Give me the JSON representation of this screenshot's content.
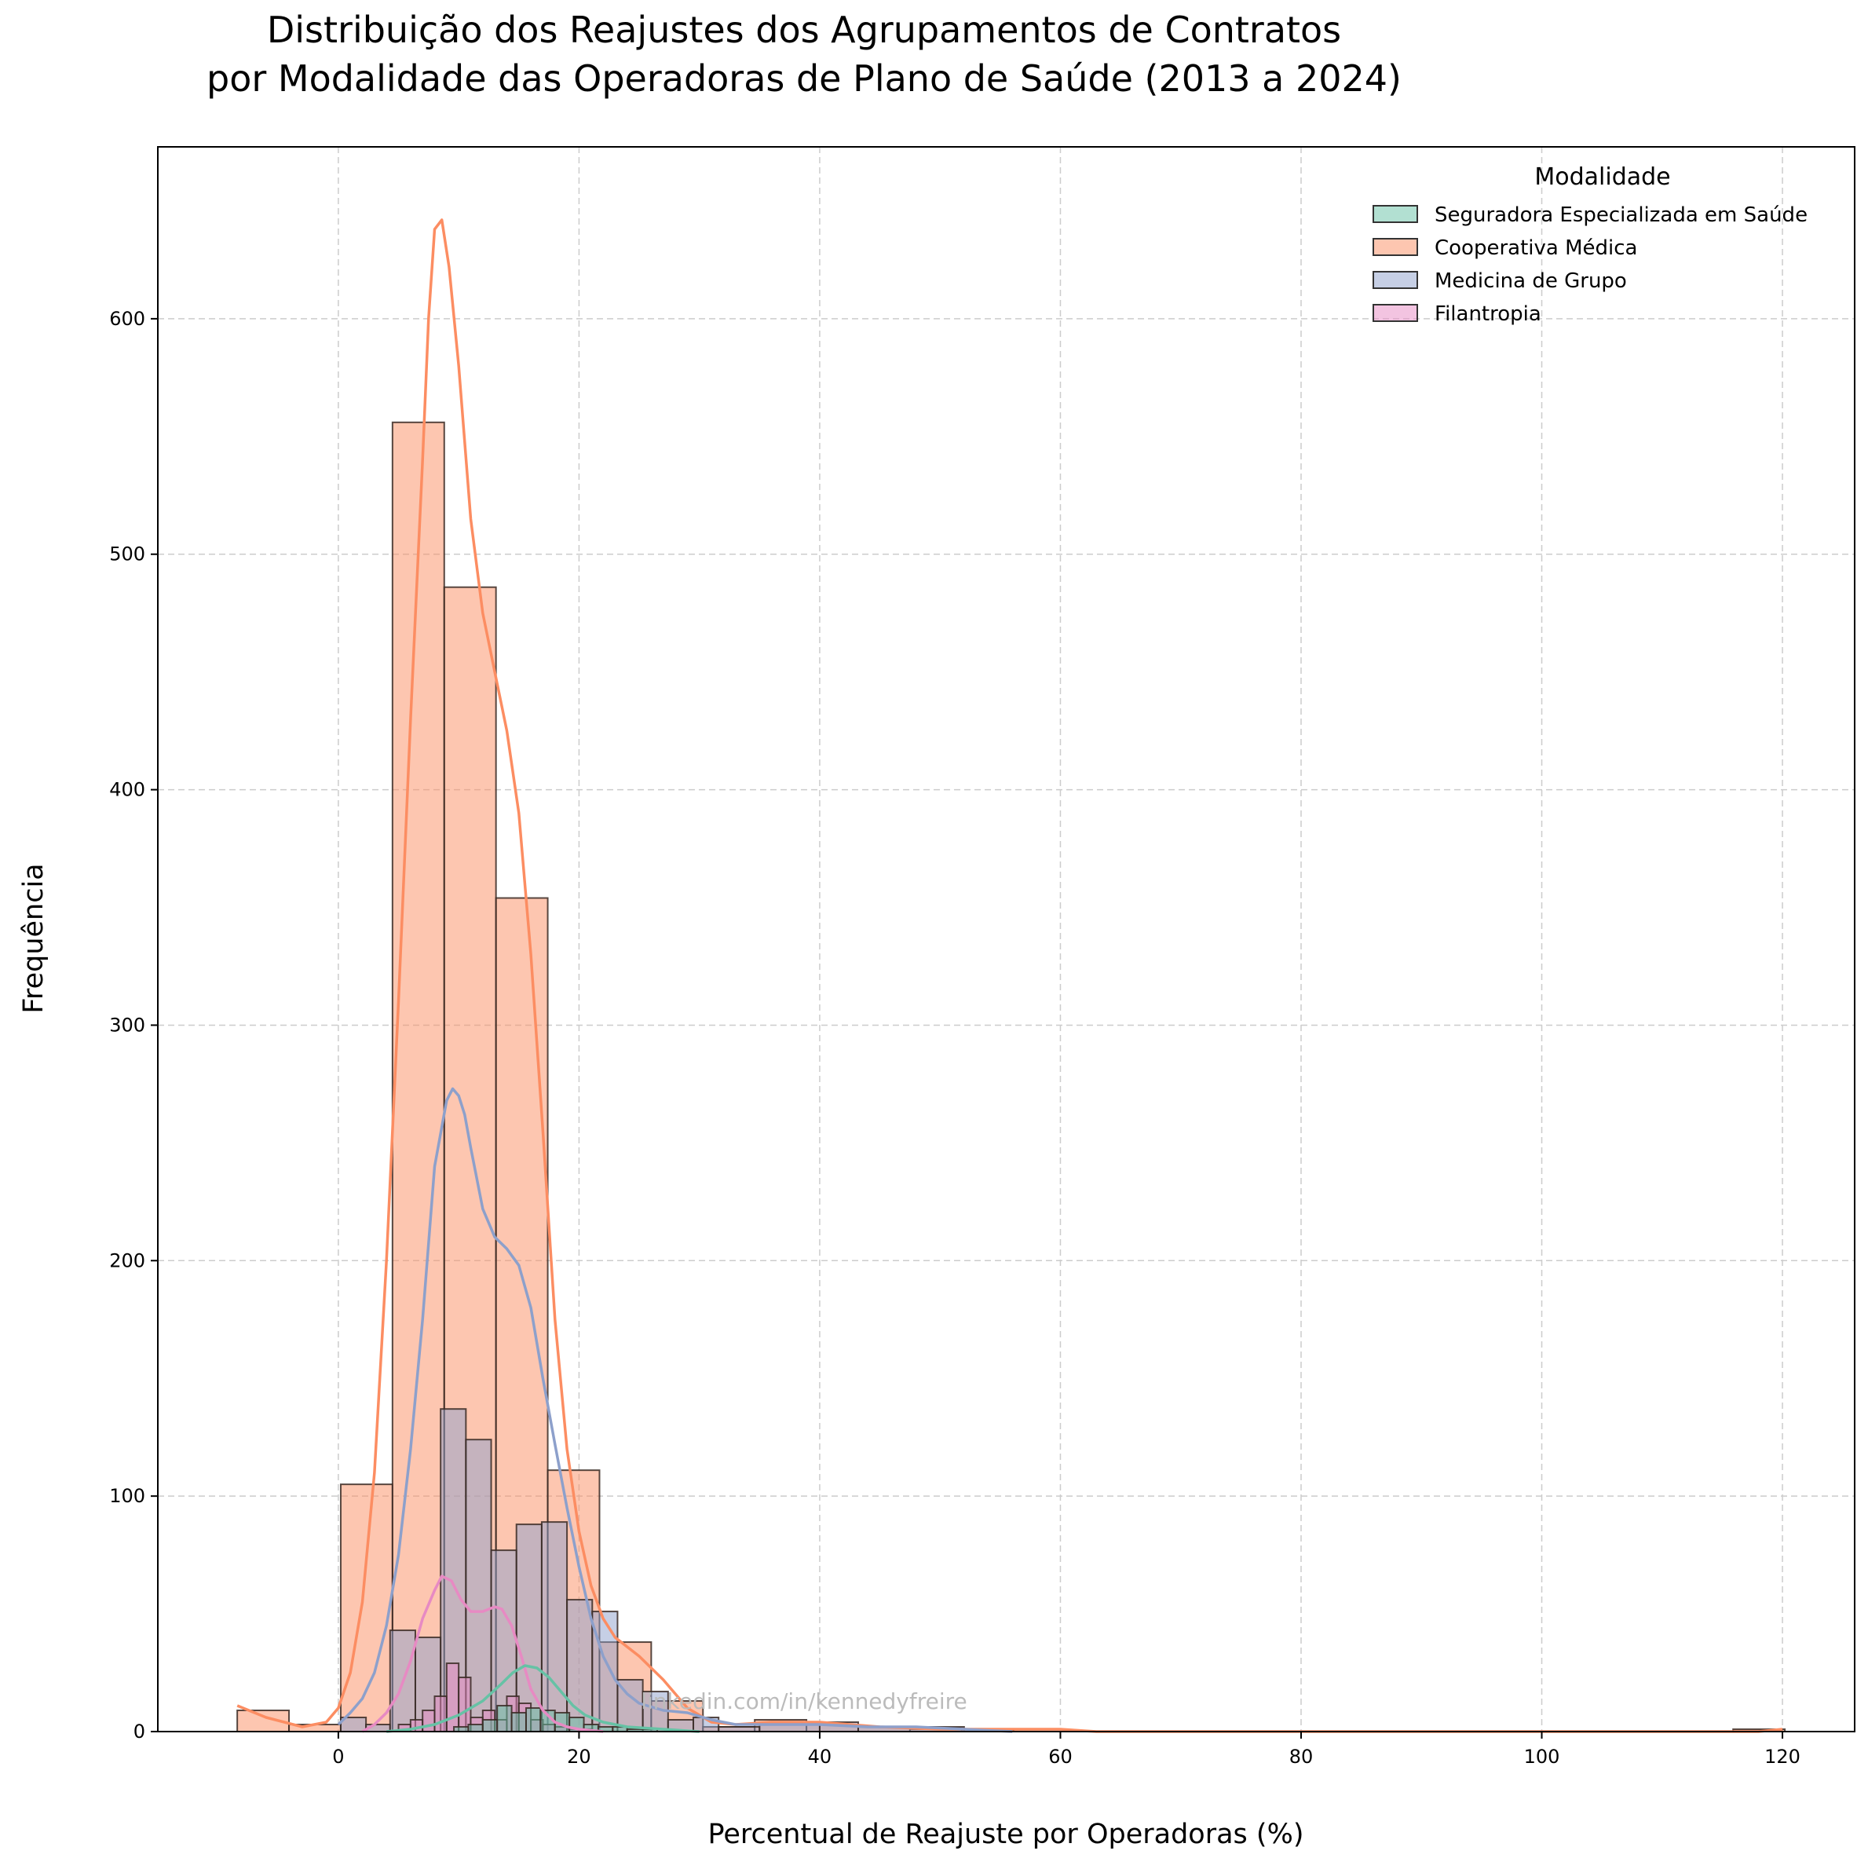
{
  "chart_data": {
    "type": "histogram",
    "title_lines": [
      "Distribuição dos Reajustes dos Agrupamentos de Contratos",
      "por Modalidade das Operadoras de Plano de Saúde (2013 a 2024)"
    ],
    "xlabel": "Percentual de Reajuste por Operadoras (%)",
    "ylabel": "Frequência",
    "xlim": [
      -15,
      126
    ],
    "ylim": [
      0,
      673
    ],
    "x_ticks": [
      0,
      20,
      40,
      60,
      80,
      100,
      120
    ],
    "y_ticks": [
      0,
      100,
      200,
      300,
      400,
      500,
      600
    ],
    "grid": true,
    "legend": {
      "title": "Modalidade",
      "placement": "top-right"
    },
    "watermark": "linkedin.com/in/kennedyfreire",
    "series": [
      {
        "name": "Cooperativa Médica",
        "color": "#fc8d62",
        "bins": [
          [
            -8.4,
            -4.1,
            9
          ],
          [
            -4.1,
            0.2,
            3
          ],
          [
            0.2,
            4.5,
            105
          ],
          [
            4.5,
            8.8,
            556
          ],
          [
            8.8,
            13.1,
            486
          ],
          [
            13.1,
            17.4,
            354
          ],
          [
            17.4,
            21.7,
            111
          ],
          [
            21.7,
            26.0,
            38
          ],
          [
            26.0,
            30.3,
            13
          ],
          [
            30.3,
            34.6,
            2
          ],
          [
            34.6,
            38.9,
            5
          ],
          [
            38.9,
            43.2,
            3
          ],
          [
            43.2,
            47.5,
            2
          ],
          [
            47.5,
            51.8,
            1
          ],
          [
            51.8,
            56.1,
            1
          ],
          [
            56.1,
            60.4,
            1
          ],
          [
            115.9,
            120.2,
            1
          ]
        ],
        "kde": [
          [
            -8.4,
            11
          ],
          [
            -6,
            6
          ],
          [
            -3,
            2
          ],
          [
            -1,
            4
          ],
          [
            0,
            10
          ],
          [
            1,
            25
          ],
          [
            2,
            55
          ],
          [
            3,
            110
          ],
          [
            4,
            200
          ],
          [
            5,
            310
          ],
          [
            6,
            430
          ],
          [
            7,
            540
          ],
          [
            7.5,
            600
          ],
          [
            8,
            638
          ],
          [
            8.6,
            642
          ],
          [
            9.2,
            622
          ],
          [
            10,
            580
          ],
          [
            11,
            515
          ],
          [
            12,
            475
          ],
          [
            13,
            450
          ],
          [
            14,
            425
          ],
          [
            15,
            390
          ],
          [
            16,
            330
          ],
          [
            17,
            255
          ],
          [
            18,
            175
          ],
          [
            19,
            120
          ],
          [
            20,
            85
          ],
          [
            21,
            62
          ],
          [
            22,
            48
          ],
          [
            23,
            40
          ],
          [
            25,
            32
          ],
          [
            27,
            22
          ],
          [
            29,
            10
          ],
          [
            31,
            4
          ],
          [
            33,
            3
          ],
          [
            36,
            4
          ],
          [
            40,
            4
          ],
          [
            45,
            2
          ],
          [
            50,
            1
          ],
          [
            55,
            1
          ],
          [
            60,
            1
          ],
          [
            63,
            0
          ],
          [
            70,
            0
          ],
          [
            118,
            0
          ],
          [
            120,
            1
          ]
        ]
      },
      {
        "name": "Medicina de Grupo",
        "color": "#8da0cb",
        "bins": [
          [
            0.2,
            2.3,
            6
          ],
          [
            2.3,
            4.3,
            3
          ],
          [
            4.3,
            6.4,
            43
          ],
          [
            6.4,
            8.5,
            40
          ],
          [
            8.5,
            10.6,
            137
          ],
          [
            10.6,
            12.7,
            124
          ],
          [
            12.7,
            14.8,
            77
          ],
          [
            14.8,
            16.9,
            88
          ],
          [
            16.9,
            19.0,
            89
          ],
          [
            19.0,
            21.1,
            56
          ],
          [
            21.1,
            23.2,
            51
          ],
          [
            23.2,
            25.3,
            22
          ],
          [
            25.3,
            27.4,
            17
          ],
          [
            27.4,
            29.5,
            5
          ],
          [
            29.5,
            31.6,
            6
          ],
          [
            31.6,
            35.0,
            2
          ],
          [
            35.0,
            40.0,
            3
          ],
          [
            40.0,
            43.2,
            4
          ],
          [
            43.2,
            52.0,
            2
          ]
        ],
        "kde": [
          [
            0,
            3
          ],
          [
            1,
            8
          ],
          [
            2,
            14
          ],
          [
            3,
            25
          ],
          [
            4,
            45
          ],
          [
            5,
            75
          ],
          [
            6,
            120
          ],
          [
            7,
            175
          ],
          [
            8,
            240
          ],
          [
            9,
            268
          ],
          [
            9.5,
            273
          ],
          [
            10,
            270
          ],
          [
            10.5,
            262
          ],
          [
            11,
            248
          ],
          [
            12,
            222
          ],
          [
            13,
            210
          ],
          [
            14,
            205
          ],
          [
            15,
            198
          ],
          [
            16,
            180
          ],
          [
            17,
            150
          ],
          [
            18,
            122
          ],
          [
            19,
            95
          ],
          [
            20,
            70
          ],
          [
            21,
            48
          ],
          [
            22,
            32
          ],
          [
            23,
            22
          ],
          [
            24,
            16
          ],
          [
            25,
            12
          ],
          [
            27,
            9
          ],
          [
            29,
            8
          ],
          [
            31,
            5
          ],
          [
            33,
            3
          ],
          [
            36,
            3
          ],
          [
            40,
            3
          ],
          [
            44,
            2
          ],
          [
            48,
            2
          ],
          [
            52,
            1
          ],
          [
            56,
            0
          ]
        ]
      },
      {
        "name": "Filantropia",
        "color": "#e78ac3",
        "bins": [
          [
            5.0,
            6.0,
            3
          ],
          [
            6.0,
            7.0,
            5
          ],
          [
            7.0,
            8.0,
            9
          ],
          [
            8.0,
            9.0,
            15
          ],
          [
            9.0,
            10.0,
            29
          ],
          [
            10.0,
            11.0,
            23
          ],
          [
            11.0,
            12.0,
            6
          ],
          [
            12.0,
            13.0,
            9
          ],
          [
            13.0,
            14.0,
            5
          ],
          [
            14.0,
            15.0,
            15
          ],
          [
            15.0,
            16.0,
            12
          ],
          [
            16.0,
            17.0,
            5
          ],
          [
            17.0,
            18.0,
            3
          ],
          [
            18.0,
            19.0,
            2
          ],
          [
            19.0,
            20.0,
            1
          ],
          [
            20.0,
            21.0,
            1
          ]
        ],
        "kde": [
          [
            2,
            0
          ],
          [
            3,
            3
          ],
          [
            4,
            8
          ],
          [
            5,
            16
          ],
          [
            6,
            30
          ],
          [
            7,
            48
          ],
          [
            8,
            60
          ],
          [
            8.6,
            66
          ],
          [
            9.4,
            64
          ],
          [
            10.2,
            56
          ],
          [
            11,
            51
          ],
          [
            12,
            51
          ],
          [
            13,
            53
          ],
          [
            13.6,
            52
          ],
          [
            14.4,
            45
          ],
          [
            15.2,
            32
          ],
          [
            16,
            18
          ],
          [
            17,
            9
          ],
          [
            18,
            4
          ],
          [
            19,
            2
          ],
          [
            20,
            1
          ],
          [
            22,
            0
          ]
        ]
      },
      {
        "name": "Seguradora Especializada em Saúde",
        "color": "#66c2a5",
        "bins": [
          [
            9.6,
            10.8,
            2
          ],
          [
            10.8,
            12.0,
            3
          ],
          [
            12.0,
            13.2,
            5
          ],
          [
            13.2,
            14.4,
            11
          ],
          [
            14.4,
            15.6,
            8
          ],
          [
            15.6,
            16.8,
            10
          ],
          [
            16.8,
            18.0,
            9
          ],
          [
            18.0,
            19.2,
            8
          ],
          [
            19.2,
            20.4,
            6
          ],
          [
            20.4,
            21.6,
            3
          ],
          [
            21.6,
            22.8,
            2
          ],
          [
            22.8,
            24.0,
            2
          ],
          [
            24.0,
            26.5,
            1
          ]
        ],
        "kde": [
          [
            4,
            0
          ],
          [
            6,
            1
          ],
          [
            8,
            3
          ],
          [
            10,
            7
          ],
          [
            12,
            13
          ],
          [
            13.5,
            20
          ],
          [
            14.5,
            25
          ],
          [
            15.5,
            28
          ],
          [
            16.5,
            27
          ],
          [
            17.5,
            23
          ],
          [
            18.5,
            17
          ],
          [
            19.5,
            11
          ],
          [
            20.5,
            7
          ],
          [
            22,
            4
          ],
          [
            24,
            2
          ],
          [
            27,
            1
          ],
          [
            30,
            0
          ]
        ]
      }
    ]
  }
}
